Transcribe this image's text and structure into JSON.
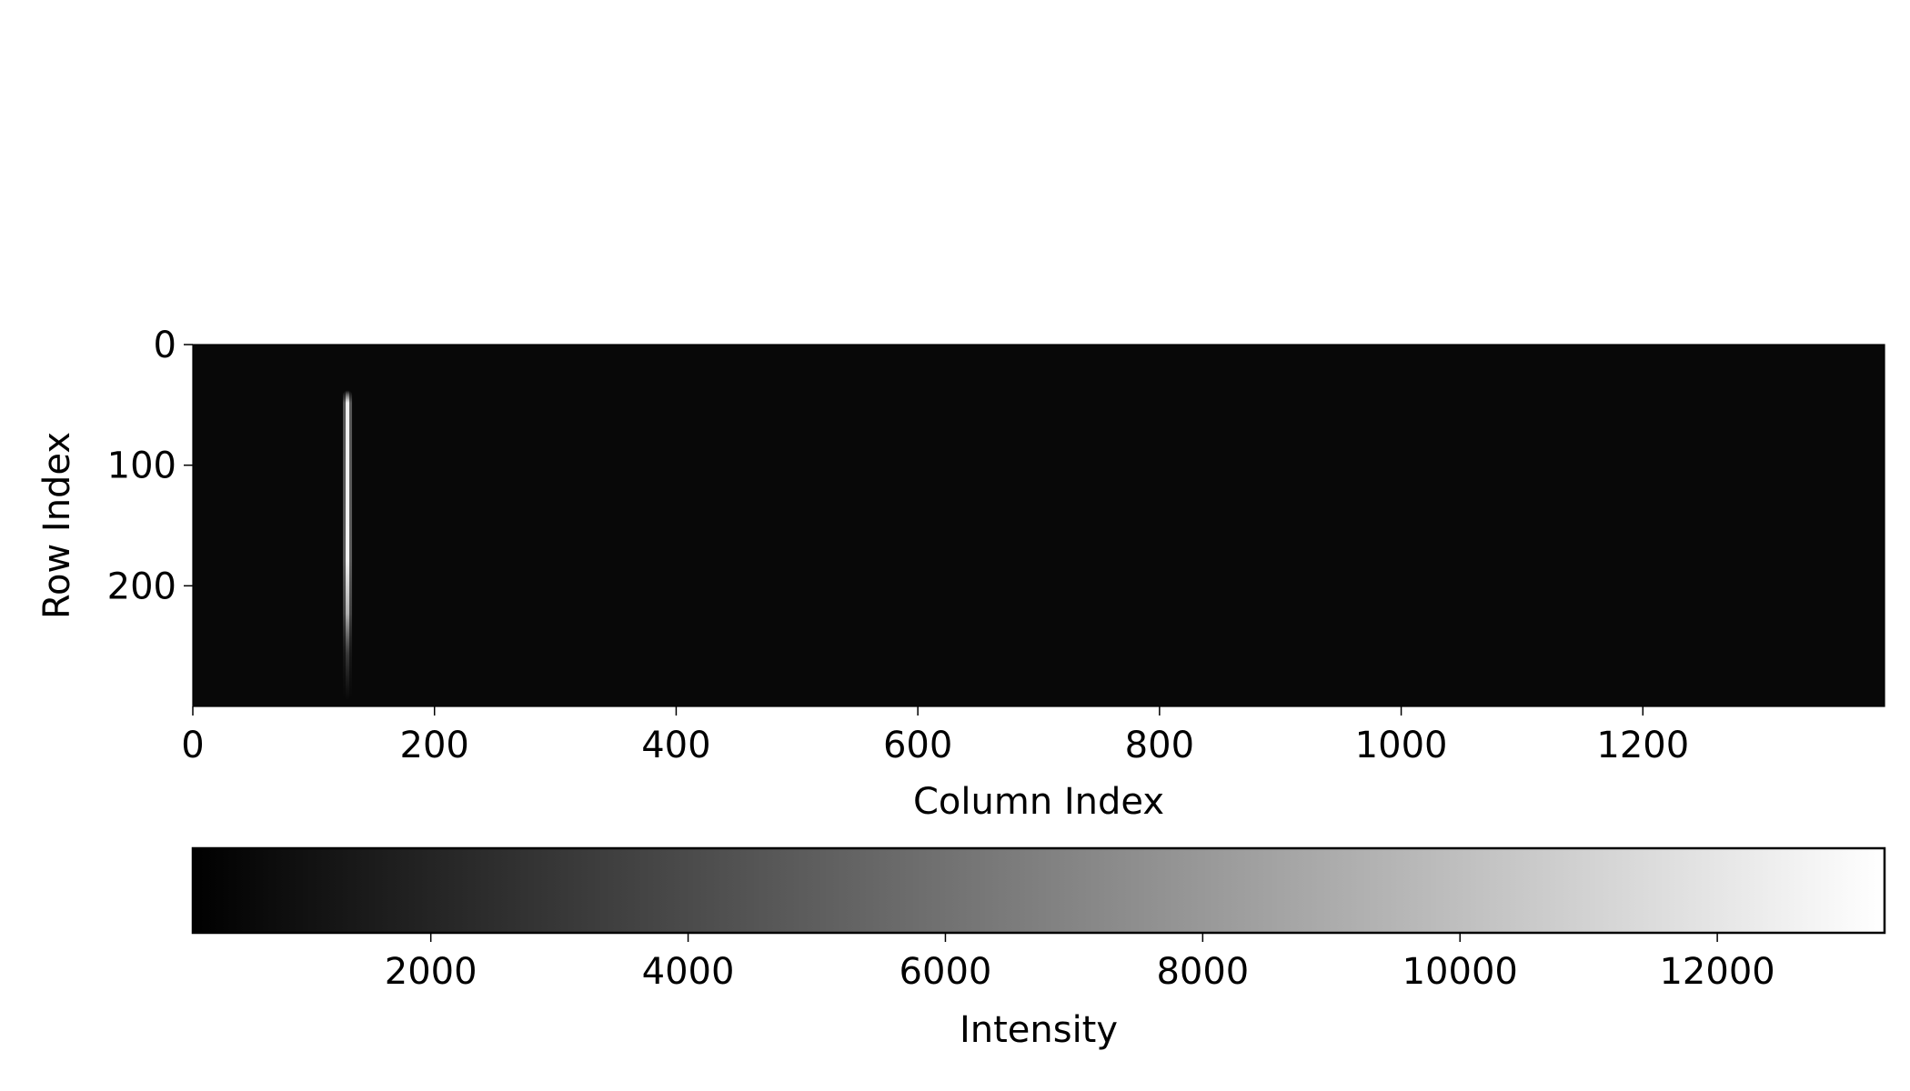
{
  "chart_data": {
    "type": "heatmap",
    "title": "",
    "xlabel": "Column Index",
    "ylabel": "Row Index",
    "xlim": [
      0,
      1400
    ],
    "ylim": [
      300,
      0
    ],
    "x_ticks": [
      0,
      200,
      400,
      600,
      800,
      1000,
      1200
    ],
    "y_ticks": [
      0,
      100,
      200
    ],
    "colormap": "gray",
    "background_value": 550,
    "features": [
      {
        "column": 128,
        "row_start": 38,
        "row_end": 295,
        "peak_value": 13300
      }
    ],
    "colorbar": {
      "label": "Intensity",
      "range": [
        150,
        13300
      ],
      "ticks": [
        2000,
        4000,
        6000,
        8000,
        10000,
        12000
      ],
      "orientation": "horizontal",
      "placement": "bottom"
    }
  }
}
